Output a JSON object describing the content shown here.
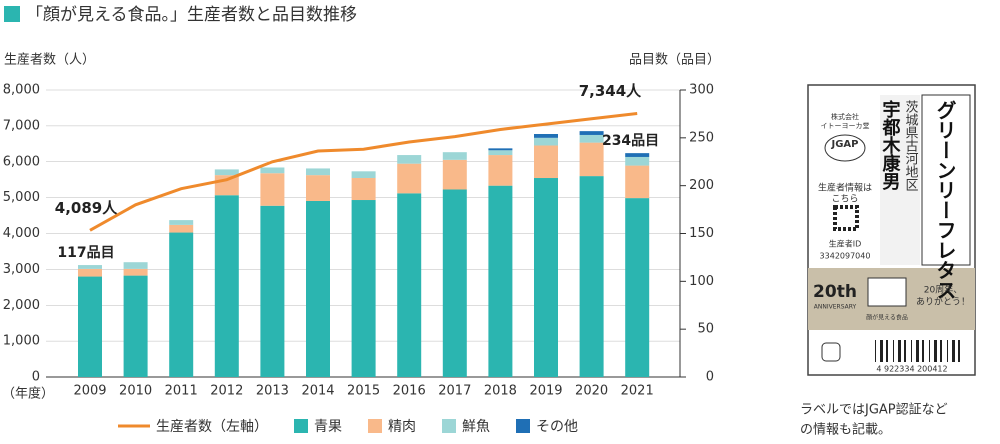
{
  "chart_data": {
    "type": "bar-line",
    "title": "「顔が見える食品。」生産者数と品目数推移",
    "y_label": "生産者数（人）",
    "y2_label": "品目数（品目）",
    "x_label": "（年度）",
    "categories": [
      "2009",
      "2010",
      "2011",
      "2012",
      "2013",
      "2014",
      "2015",
      "2016",
      "2017",
      "2018",
      "2019",
      "2020",
      "2021"
    ],
    "ylim": [
      0,
      8000
    ],
    "yticks": [
      0,
      {
        "value": 1000,
        "label": "1,000"
      },
      {
        "value": 2000,
        "label": "2,000"
      },
      {
        "value": 3000,
        "label": "3,000"
      },
      {
        "value": 4000,
        "label": "4,000"
      },
      {
        "value": 5000,
        "label": "5,000"
      },
      {
        "value": 6000,
        "label": "6,000"
      },
      {
        "value": 7000,
        "label": "7,000"
      },
      {
        "value": 8000,
        "label": "8,000"
      }
    ],
    "y2lim": [
      0,
      300
    ],
    "y2ticks": [
      0,
      50,
      100,
      150,
      200,
      250,
      300
    ],
    "series": [
      {
        "name": "生産者数（左軸）",
        "type": "line",
        "color": "#ef8a2c",
        "values": [
          4089,
          4800,
          5250,
          5500,
          6000,
          6300,
          6350,
          6550,
          6700,
          6900,
          7050,
          7200,
          7344
        ],
        "value_labels": [
          "4,089人",
          null,
          null,
          null,
          null,
          null,
          null,
          null,
          null,
          null,
          null,
          null,
          "7,344人"
        ]
      },
      {
        "name": "青果",
        "type": "bar",
        "axis": "y2",
        "color": "#2bb5b0",
        "values": [
          105,
          106,
          151,
          190,
          179,
          184,
          185,
          192,
          196,
          200,
          208,
          210,
          187
        ]
      },
      {
        "name": "精肉",
        "type": "bar",
        "axis": "y2",
        "color": "#f9b98a",
        "values": [
          8,
          7,
          8,
          21,
          34,
          27,
          23,
          31,
          31,
          32,
          34,
          35,
          34
        ]
      },
      {
        "name": "鮮魚",
        "type": "bar",
        "axis": "y2",
        "color": "#9cd6d6",
        "values": [
          4,
          7,
          5,
          6,
          6,
          7,
          7,
          9,
          8,
          5,
          8,
          8,
          9
        ]
      },
      {
        "name": "その他",
        "type": "bar",
        "axis": "y2",
        "color": "#1f6fb5",
        "values": [
          0,
          0,
          0,
          0,
          0,
          0,
          0,
          0,
          0,
          2,
          4,
          4,
          4
        ]
      }
    ],
    "total_labels": [
      {
        "category": 0,
        "value": 117,
        "label": "117品目"
      },
      {
        "category": 12,
        "value": 234,
        "label": "234品目"
      }
    ]
  },
  "label_image": {
    "product": "グリーンリーフレタス",
    "region": "茨城県古河地区",
    "producer": "宇都木康男",
    "company": "株式会社",
    "company_name": "イトーヨーカ堂",
    "jgap": "JGAP",
    "info": "生産者情報は",
    "info2": "こちら",
    "id_label": "生産者ID",
    "id": "3342097040",
    "anniversary": "20th",
    "anniversary_sub": "ANNIVERSARY",
    "thanks1": "20周年、",
    "thanks2": "ありがとう！",
    "brand": "顔が見える食品",
    "barcode": "4 922334 200412"
  },
  "caption": [
    "ラベルではJGAP認証など",
    "の情報も記載。"
  ]
}
